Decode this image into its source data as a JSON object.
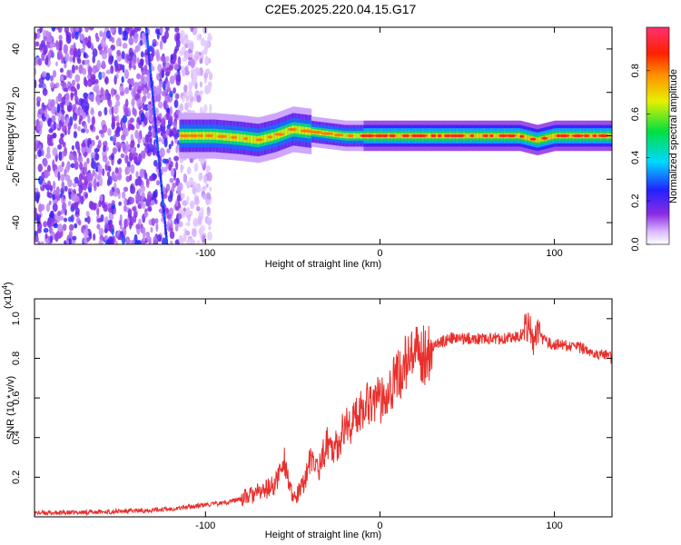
{
  "title": "C2E5.2025.220.04.15.G17",
  "chart_data": [
    {
      "type": "heatmap",
      "xlabel": "Height of straight line (km)",
      "ylabel": "Frequency (Hz)",
      "xlim": [
        -198,
        133
      ],
      "ylim": [
        -50,
        50
      ],
      "xticks": [
        -100,
        0,
        100
      ],
      "yticks": [
        -40,
        -20,
        0,
        20,
        40
      ],
      "colorbar": {
        "label": "Normalized spectral amplitude",
        "range": [
          0.0,
          1.0
        ],
        "ticks": [
          "0.0",
          "0.2",
          "0.4",
          "0.6",
          "0.8"
        ]
      },
      "ridge": {
        "x_start": -115,
        "x_end": 133,
        "center_freq": 0,
        "points": [
          [
            -115,
            0
          ],
          [
            -95,
            0
          ],
          [
            -80,
            -1
          ],
          [
            -70,
            -2
          ],
          [
            -60,
            0
          ],
          [
            -50,
            3
          ],
          [
            -40,
            2
          ],
          [
            -30,
            1
          ],
          [
            -20,
            0
          ],
          [
            -10,
            0
          ],
          [
            0,
            0
          ],
          [
            20,
            0
          ],
          [
            40,
            0
          ],
          [
            60,
            0
          ],
          [
            80,
            0
          ],
          [
            90,
            -2
          ],
          [
            100,
            0
          ],
          [
            133,
            0
          ]
        ]
      }
    },
    {
      "type": "line",
      "xlabel": "Height of straight line (km)",
      "ylabel": "SNR (10 * v/v)",
      "scale_note": "(x10",
      "scale_exp": "4",
      "xlim": [
        -198,
        133
      ],
      "ylim": [
        0.0,
        1.1
      ],
      "xticks": [
        -100,
        0,
        100
      ],
      "yticks": [
        0.2,
        0.4,
        0.6,
        0.8,
        1.0
      ],
      "series": [
        {
          "color": "#e8302c",
          "x": [
            -198,
            -180,
            -160,
            -140,
            -130,
            -120,
            -110,
            -100,
            -90,
            -80,
            -70,
            -60,
            -55,
            -50,
            -45,
            -40,
            -35,
            -30,
            -25,
            -20,
            -15,
            -10,
            -5,
            0,
            5,
            10,
            15,
            20,
            25,
            30,
            35,
            40,
            50,
            60,
            70,
            80,
            84,
            86,
            88,
            90,
            95,
            100,
            110,
            120,
            133
          ],
          "y": [
            0.02,
            0.02,
            0.025,
            0.03,
            0.035,
            0.04,
            0.05,
            0.06,
            0.07,
            0.09,
            0.12,
            0.16,
            0.3,
            0.08,
            0.14,
            0.28,
            0.25,
            0.38,
            0.35,
            0.46,
            0.48,
            0.56,
            0.6,
            0.58,
            0.66,
            0.7,
            0.78,
            0.8,
            0.82,
            0.86,
            0.88,
            0.9,
            0.9,
            0.9,
            0.9,
            0.91,
            0.96,
            0.98,
            0.85,
            0.92,
            0.88,
            0.87,
            0.86,
            0.84,
            0.8
          ]
        }
      ]
    }
  ]
}
